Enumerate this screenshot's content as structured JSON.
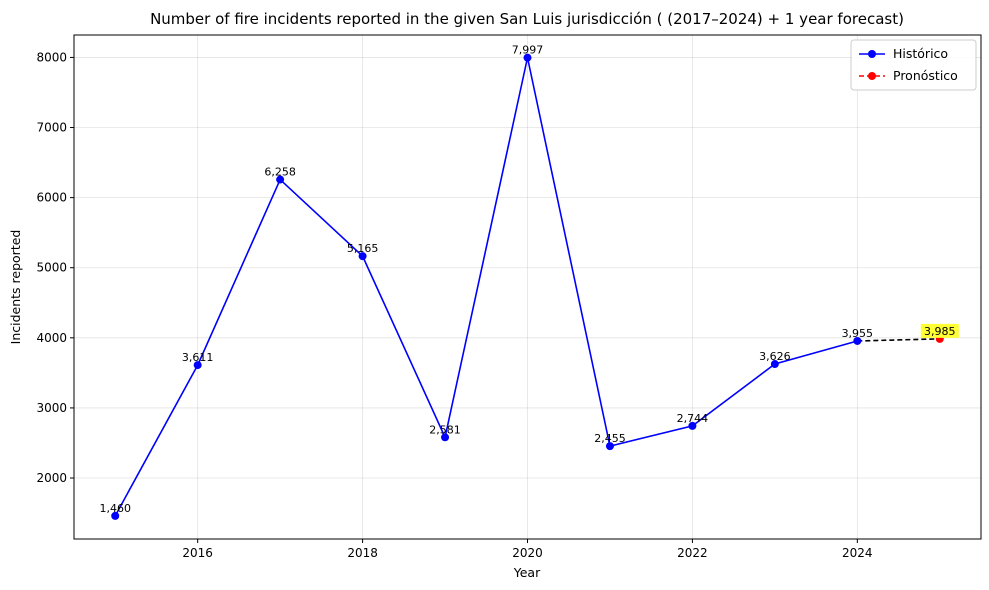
{
  "chart_data": {
    "type": "line",
    "title": "Number of fire incidents reported in the given San Luis jurisdicción  ( (2017–2024)  + 1 year forecast)",
    "xlabel": "Year",
    "ylabel": "Incidents reported",
    "xlim": [
      2014.5,
      2025.5
    ],
    "ylim": [
      1130,
      8320
    ],
    "x_ticks": [
      2016,
      2018,
      2020,
      2022,
      2024
    ],
    "y_ticks": [
      2000,
      3000,
      4000,
      5000,
      6000,
      7000,
      8000
    ],
    "grid": true,
    "legend_position": "top-right",
    "series": [
      {
        "name": "Histórico",
        "color": "#0000ff",
        "style": "solid",
        "marker": "circle",
        "x": [
          2015,
          2016,
          2017,
          2018,
          2019,
          2020,
          2021,
          2022,
          2023,
          2024
        ],
        "values": [
          1460,
          3611,
          6258,
          5165,
          2581,
          7997,
          2455,
          2744,
          3626,
          3955
        ],
        "labels": [
          "1,460",
          "3,611",
          "6,258",
          "5,165",
          "2,581",
          "7,997",
          "2,455",
          "2,744",
          "3,626",
          "3,955"
        ]
      },
      {
        "name": "Pronóstico",
        "color": "#ff0000",
        "style": "dashed",
        "marker": "circle",
        "x": [
          2025
        ],
        "values": [
          3985
        ],
        "labels": [
          "3,985"
        ],
        "label_highlight": "#ffff33"
      }
    ],
    "connector": {
      "color": "#000000",
      "style": "dashed",
      "x": [
        2024,
        2025
      ],
      "values": [
        3955,
        3985
      ]
    }
  }
}
